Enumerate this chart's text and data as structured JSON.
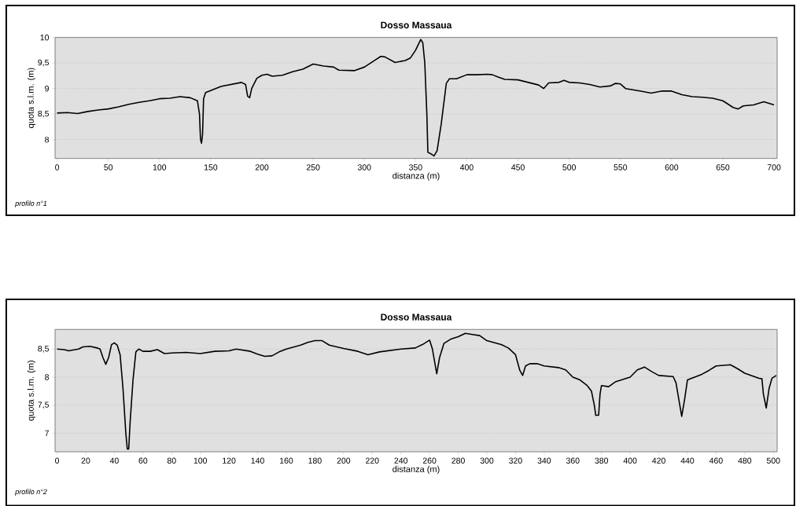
{
  "chart_data": [
    {
      "type": "line",
      "title": "Dosso Massaua",
      "xlabel": "distanza (m)",
      "ylabel": "quota s.l.m. (m)",
      "annotations": [
        "profilo n°1"
      ],
      "grid": "y",
      "xlim": [
        -2,
        703
      ],
      "ylim": [
        7.63,
        10
      ],
      "xticks": [
        0,
        50,
        100,
        150,
        200,
        250,
        300,
        350,
        400,
        450,
        500,
        550,
        600,
        650,
        700
      ],
      "yticks": [
        8,
        {
          "value": 8.5,
          "label": "8,5"
        },
        9,
        {
          "value": 9.5,
          "label": "9,5"
        },
        10
      ],
      "series": [
        {
          "color": "#000000",
          "x": [
            0,
            10,
            20,
            30,
            40,
            50,
            60,
            70,
            80,
            90,
            100,
            110,
            120,
            130,
            137,
            139,
            140,
            141,
            142,
            143,
            145,
            150,
            160,
            170,
            180,
            184,
            186,
            188,
            190,
            195,
            200,
            205,
            210,
            220,
            230,
            240,
            250,
            260,
            270,
            275,
            290,
            300,
            310,
            316,
            320,
            330,
            340,
            345,
            350,
            355,
            357,
            359,
            361,
            362,
            365,
            368,
            371,
            375,
            380,
            383,
            390,
            400,
            410,
            420,
            425,
            430,
            437,
            450,
            460,
            470,
            475,
            480,
            490,
            495,
            500,
            510,
            520,
            530,
            540,
            545,
            550,
            555,
            570,
            580,
            590,
            600,
            610,
            620,
            630,
            640,
            650,
            660,
            665,
            670,
            680,
            690,
            700
          ],
          "values": [
            8.52,
            8.53,
            8.51,
            8.55,
            8.58,
            8.6,
            8.64,
            8.69,
            8.73,
            8.76,
            8.8,
            8.81,
            8.84,
            8.82,
            8.76,
            8.5,
            8.0,
            7.93,
            8.1,
            8.8,
            8.92,
            8.96,
            9.04,
            9.08,
            9.12,
            9.08,
            8.85,
            8.82,
            9.0,
            9.2,
            9.26,
            9.28,
            9.24,
            9.26,
            9.33,
            9.38,
            9.48,
            9.44,
            9.42,
            9.36,
            9.35,
            9.42,
            9.55,
            9.63,
            9.62,
            9.51,
            9.55,
            9.6,
            9.75,
            9.96,
            9.9,
            9.5,
            8.5,
            7.75,
            7.72,
            7.68,
            7.78,
            8.3,
            9.1,
            9.19,
            9.19,
            9.27,
            9.27,
            9.28,
            9.27,
            9.23,
            9.18,
            9.17,
            9.12,
            9.07,
            9.0,
            9.11,
            9.12,
            9.16,
            9.12,
            9.11,
            9.08,
            9.03,
            9.05,
            9.1,
            9.09,
            9.0,
            8.95,
            8.91,
            8.95,
            8.95,
            8.88,
            8.84,
            8.83,
            8.81,
            8.76,
            8.63,
            8.6,
            8.66,
            8.68,
            8.74,
            8.68
          ]
        }
      ]
    },
    {
      "type": "line",
      "title": "Dosso Massaua",
      "xlabel": "distanza (m)",
      "ylabel": "quota s.l.m. (m)",
      "annotations": [
        "profilo n°2"
      ],
      "grid": "y",
      "xlim": [
        -1.4,
        502.6
      ],
      "ylim": [
        6.67,
        8.85
      ],
      "xticks": [
        0,
        20,
        40,
        60,
        80,
        100,
        120,
        140,
        160,
        180,
        200,
        220,
        240,
        260,
        280,
        300,
        320,
        340,
        360,
        380,
        400,
        420,
        440,
        460,
        480,
        500
      ],
      "yticks": [
        7,
        {
          "value": 7.5,
          "label": "7,5"
        },
        8,
        {
          "value": 8.5,
          "label": "8,5"
        }
      ],
      "series": [
        {
          "color": "#000000",
          "x": [
            0,
            5,
            8,
            15,
            18,
            23,
            28,
            30,
            32,
            34,
            36,
            38,
            40,
            42,
            44,
            46,
            48,
            49,
            50,
            51,
            53,
            55,
            57,
            60,
            65,
            70,
            75,
            80,
            90,
            100,
            110,
            120,
            125,
            135,
            140,
            145,
            150,
            155,
            160,
            170,
            175,
            180,
            185,
            190,
            200,
            210,
            217,
            225,
            240,
            250,
            255,
            260,
            262,
            265,
            267,
            270,
            275,
            280,
            285,
            290,
            295,
            300,
            310,
            315,
            320,
            323,
            325,
            327,
            330,
            335,
            340,
            350,
            355,
            360,
            365,
            370,
            373,
            375,
            376,
            378,
            379,
            380,
            385,
            390,
            400,
            405,
            410,
            415,
            420,
            430,
            432,
            434,
            436,
            438,
            440,
            450,
            455,
            460,
            470,
            475,
            480,
            490,
            492,
            493,
            495,
            497,
            499,
            502
          ],
          "values": [
            8.5,
            8.49,
            8.47,
            8.5,
            8.54,
            8.55,
            8.52,
            8.5,
            8.35,
            8.23,
            8.35,
            8.58,
            8.61,
            8.57,
            8.4,
            7.8,
            7.0,
            6.72,
            6.72,
            7.2,
            7.95,
            8.45,
            8.5,
            8.46,
            8.46,
            8.49,
            8.42,
            8.43,
            8.44,
            8.42,
            8.46,
            8.47,
            8.5,
            8.46,
            8.41,
            8.37,
            8.38,
            8.45,
            8.5,
            8.57,
            8.62,
            8.65,
            8.65,
            8.57,
            8.51,
            8.46,
            8.4,
            8.45,
            8.5,
            8.52,
            8.58,
            8.66,
            8.5,
            8.06,
            8.35,
            8.6,
            8.68,
            8.72,
            8.78,
            8.76,
            8.74,
            8.65,
            8.58,
            8.52,
            8.4,
            8.12,
            8.03,
            8.2,
            8.24,
            8.24,
            8.2,
            8.17,
            8.13,
            8.0,
            7.95,
            7.85,
            7.75,
            7.5,
            7.32,
            7.32,
            7.7,
            7.85,
            7.83,
            7.92,
            8.0,
            8.13,
            8.18,
            8.1,
            8.03,
            8.01,
            7.9,
            7.6,
            7.3,
            7.6,
            7.95,
            8.05,
            8.12,
            8.2,
            8.22,
            8.15,
            8.07,
            7.98,
            7.97,
            7.7,
            7.45,
            7.8,
            7.98,
            8.03
          ]
        }
      ]
    }
  ]
}
